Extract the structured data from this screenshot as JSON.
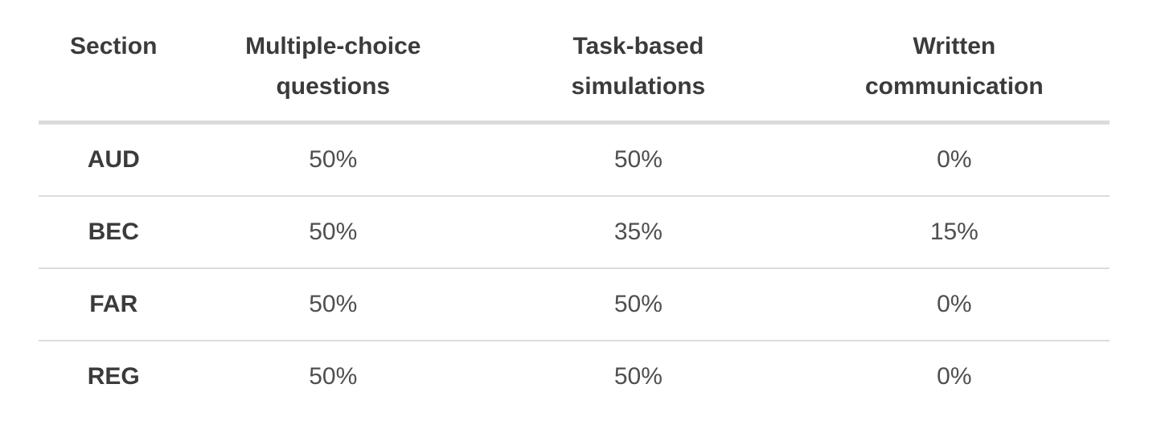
{
  "colors": {
    "background": "#ffffff",
    "header_text": "#3b3b3b",
    "row_label_text": "#3b3b3b",
    "cell_text": "#4f4f4f",
    "header_divider": "#dbdbdb",
    "row_divider": "#dcdcdc"
  },
  "table": {
    "columns": [
      {
        "label": "Section"
      },
      {
        "label": "Multiple-choice questions"
      },
      {
        "label": "Task-based simulations"
      },
      {
        "label": "Written communication"
      }
    ],
    "rows": [
      {
        "cells": [
          "AUD",
          "50%",
          "50%",
          "0%"
        ]
      },
      {
        "cells": [
          "BEC",
          "50%",
          "35%",
          "15%"
        ]
      },
      {
        "cells": [
          "FAR",
          "50%",
          "50%",
          "0%"
        ]
      },
      {
        "cells": [
          "REG",
          "50%",
          "50%",
          "0%"
        ]
      }
    ]
  },
  "chart_data": {
    "type": "table",
    "title": "",
    "columns": [
      "Section",
      "Multiple-choice questions",
      "Task-based simulations",
      "Written communication"
    ],
    "rows": [
      [
        "AUD",
        "50%",
        "50%",
        "0%"
      ],
      [
        "BEC",
        "50%",
        "35%",
        "15%"
      ],
      [
        "FAR",
        "50%",
        "50%",
        "0%"
      ],
      [
        "REG",
        "50%",
        "50%",
        "0%"
      ]
    ],
    "series": [
      {
        "name": "Multiple-choice questions",
        "values": [
          50,
          50,
          50,
          50
        ]
      },
      {
        "name": "Task-based simulations",
        "values": [
          50,
          35,
          50,
          50
        ]
      },
      {
        "name": "Written communication",
        "values": [
          0,
          15,
          0,
          0
        ]
      }
    ],
    "categories": [
      "AUD",
      "BEC",
      "FAR",
      "REG"
    ],
    "unit": "%"
  }
}
